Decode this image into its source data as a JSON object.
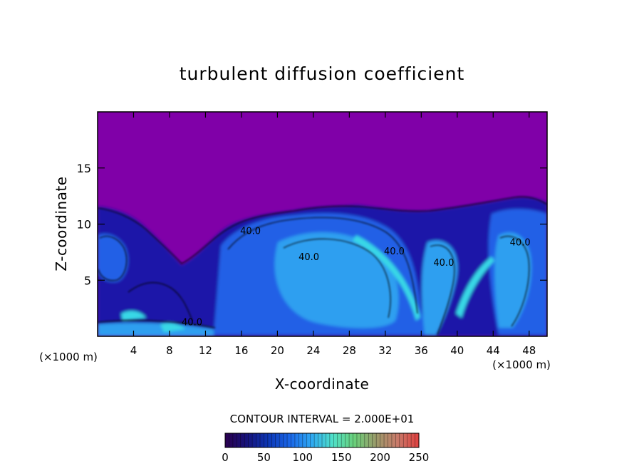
{
  "chart_data": {
    "type": "heatmap",
    "title": "turbulent diffusion coefficient",
    "xlabel": "X-coordinate",
    "ylabel": "Z-coordinate",
    "x_unit": "(×1000 m)",
    "x_unit_right": "(×1000 m)",
    "xlim": [
      0,
      50
    ],
    "ylim": [
      0,
      20
    ],
    "x_ticks": [
      4,
      8,
      12,
      16,
      20,
      24,
      28,
      32,
      36,
      40,
      44,
      48
    ],
    "y_ticks": [
      5,
      10,
      15
    ],
    "x_tick_labels": [
      "4",
      "8",
      "12",
      "16",
      "20",
      "24",
      "28",
      "32",
      "36",
      "40",
      "44",
      "48"
    ],
    "y_tick_labels": [
      "5",
      "10",
      "15"
    ],
    "contour_interval_text": "CONTOUR INTERVAL = 2.000E+01",
    "contour_interval": 20,
    "contour_labels": [
      {
        "text": "40.0",
        "x": 17.0,
        "z": 9.1
      },
      {
        "text": "40.0",
        "x": 23.5,
        "z": 6.8
      },
      {
        "text": "40.0",
        "x": 33.0,
        "z": 7.3
      },
      {
        "text": "40.0",
        "x": 38.5,
        "z": 6.3
      },
      {
        "text": "40.0",
        "x": 47.0,
        "z": 8.1
      },
      {
        "text": "40.0",
        "x": 10.5,
        "z": 1.0
      }
    ],
    "colorbar": {
      "min": 0,
      "max": 250,
      "ticks": [
        0,
        50,
        100,
        150,
        200,
        250
      ],
      "tick_labels": [
        "0",
        "50",
        "100",
        "150",
        "200",
        "250"
      ],
      "colors": [
        "#2a0050",
        "#17127a",
        "#0c36b4",
        "#1a66e8",
        "#2ea7f2",
        "#4fe0c8",
        "#6ad07a",
        "#9a9a6a",
        "#c87a6a",
        "#e04040"
      ]
    },
    "field_colors": {
      "background": "#8000a8",
      "dark_blue": "#1a14a8",
      "mid_blue": "#2060e6",
      "light_blue": "#2f9ff0",
      "cyan": "#37d8e6",
      "green": "#4fe0a0"
    }
  }
}
